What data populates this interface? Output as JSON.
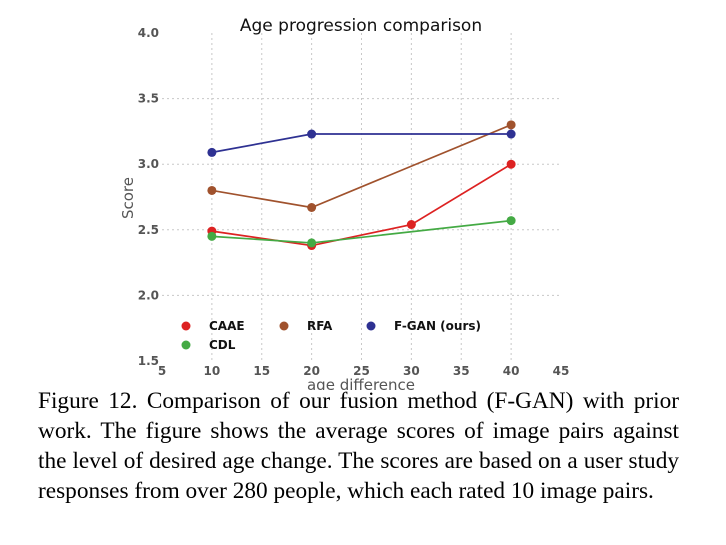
{
  "chart_data": {
    "type": "line",
    "title": "Age progression comparison",
    "xlabel": "age difference",
    "ylabel": "Score",
    "xlim": [
      5,
      45
    ],
    "ylim": [
      1.5,
      4.0
    ],
    "xticks": [
      "5",
      "10",
      "15",
      "20",
      "25",
      "30",
      "35",
      "40",
      "45"
    ],
    "yticks": [
      "1.5",
      "2.0",
      "2.5",
      "3.0",
      "3.5",
      "4.0"
    ],
    "grid": true,
    "legend_position": "bottom",
    "series": [
      {
        "name": "CAAE",
        "color": "#dd2222",
        "x": [
          10,
          20,
          30,
          40
        ],
        "y": [
          2.49,
          2.38,
          2.54,
          3.0
        ]
      },
      {
        "name": "RFA",
        "color": "#a0522d",
        "x": [
          10,
          20,
          40
        ],
        "y": [
          2.8,
          2.67,
          3.3
        ]
      },
      {
        "name": "F-GAN (ours)",
        "color": "#2e3192",
        "x": [
          10,
          20,
          40
        ],
        "y": [
          3.09,
          3.23,
          3.23
        ]
      },
      {
        "name": "CDL",
        "color": "#44aa44",
        "x": [
          10,
          20,
          40
        ],
        "y": [
          2.45,
          2.4,
          2.57
        ]
      }
    ]
  },
  "caption": "Figure 12. Comparison of our fusion method (F-GAN) with prior work. The figure shows the average scores of image pairs against the level of desired age change. The scores are based on a user study responses from over 280 people, which each rated 10 image pairs."
}
